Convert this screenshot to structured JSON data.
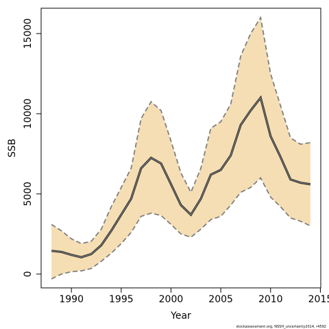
{
  "chart_data": {
    "type": "line",
    "x_label": "Year",
    "y_label": "SSB",
    "footnote": "stockassessment.org, NSSH_uncertainty2014, r4592",
    "x": [
      1988,
      1989,
      1990,
      1991,
      1992,
      1993,
      1994,
      1995,
      1996,
      1997,
      1998,
      1999,
      2000,
      2001,
      2002,
      2003,
      2004,
      2005,
      2006,
      2007,
      2008,
      2009,
      2010,
      2011,
      2012,
      2013,
      2014
    ],
    "values": [
      1450,
      1380,
      1200,
      1050,
      1250,
      1800,
      2700,
      3700,
      4700,
      6600,
      7250,
      6900,
      5600,
      4300,
      3700,
      4700,
      6200,
      6500,
      7400,
      9300,
      10200,
      11000,
      8600,
      7300,
      5900,
      5700,
      5600
    ],
    "upper": [
      3100,
      2700,
      2200,
      1900,
      2050,
      2800,
      4200,
      5400,
      6600,
      9700,
      10750,
      10200,
      8300,
      6300,
      5100,
      6600,
      9100,
      9500,
      10600,
      13600,
      15000,
      16000,
      12500,
      10500,
      8500,
      8100,
      8200
    ],
    "lower": [
      -300,
      0,
      150,
      200,
      350,
      800,
      1300,
      1900,
      2600,
      3600,
      3800,
      3650,
      3100,
      2500,
      2300,
      2800,
      3400,
      3600,
      4300,
      5100,
      5400,
      6000,
      4800,
      4200,
      3500,
      3300,
      3000
    ],
    "color": "#333333",
    "band_color": "#f5deb3",
    "band_edge_color": "#7f7f7f",
    "xlim": [
      1986.96,
      2015.04
    ],
    "ylim": [
      -860,
      16580
    ],
    "xticks": [
      1990,
      1995,
      2000,
      2005,
      2010,
      2015
    ],
    "yticks": [
      0,
      5000,
      10000,
      15000
    ]
  }
}
